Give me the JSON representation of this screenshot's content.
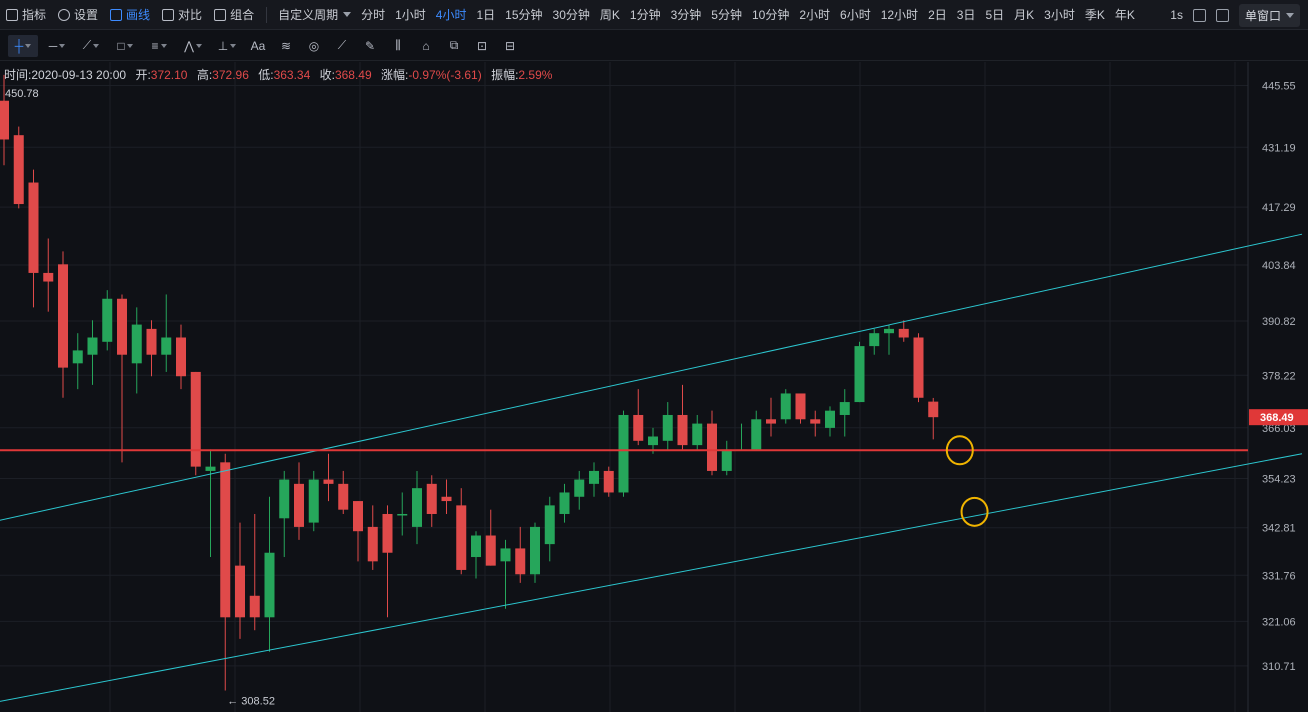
{
  "toolbar": {
    "indicators_label": "指标",
    "settings_label": "设置",
    "draw_label": "画线",
    "compare_label": "对比",
    "combine_label": "组合",
    "custom_period_label": "自定义周期",
    "periods": [
      "分时",
      "1小时",
      "4小时",
      "1日",
      "15分钟",
      "30分钟",
      "周K",
      "1分钟",
      "3分钟",
      "5分钟",
      "10分钟",
      "2小时",
      "6小时",
      "12小时",
      "2日",
      "3日",
      "5日",
      "月K",
      "3小时",
      "季K",
      "年K"
    ],
    "active_period": "4小时",
    "interval_label": "1s",
    "window_label": "单窗口"
  },
  "drawing_tools": [
    "crosshair-icon",
    "horizontal-line-icon",
    "trend-line-icon",
    "rectangle-icon",
    "parallel-lines-icon",
    "pattern-icon",
    "measure-icon",
    "text-icon",
    "fib-icon",
    "brush-icon",
    "ruler-icon",
    "pencil-icon",
    "candle-icon",
    "lock-icon",
    "copy-icon",
    "screenshot-icon",
    "trash-icon"
  ],
  "text_tool_label": "Aa",
  "info": {
    "time_label": "时间:",
    "time": "2020-09-13 20:00",
    "open_label": "开:",
    "open": "372.10",
    "high_label": "高:",
    "high": "372.96",
    "low_label": "低:",
    "low": "363.34",
    "close_label": "收:",
    "close": "368.49",
    "change_label": "涨幅:",
    "change": "-0.97%(-3.61)",
    "amp_label": "振幅:",
    "amp": "2.59%"
  },
  "chart_data": {
    "type": "candlestick",
    "y_axis": {
      "ticks": [
        445.55,
        431.19,
        417.29,
        403.84,
        390.82,
        378.22,
        366.03,
        354.23,
        342.81,
        331.76,
        321.06,
        310.71
      ],
      "range": [
        300,
        451
      ]
    },
    "visible_high_label": "450.78",
    "low_marker_label": "← 308.52",
    "current_price": "368.49",
    "colors": {
      "up": "#26a65b",
      "down": "#e04a4a",
      "channel": "#2cc7d0",
      "support": "#e03838",
      "circle": "#f0b400",
      "grid": "#1c1f26"
    },
    "candles": [
      {
        "o": 442,
        "h": 448,
        "l": 427,
        "c": 433
      },
      {
        "o": 434,
        "h": 436,
        "l": 417,
        "c": 418
      },
      {
        "o": 423,
        "h": 426,
        "l": 394,
        "c": 402
      },
      {
        "o": 402,
        "h": 410,
        "l": 393,
        "c": 400
      },
      {
        "o": 404,
        "h": 407,
        "l": 373,
        "c": 380
      },
      {
        "o": 381,
        "h": 388,
        "l": 375,
        "c": 384
      },
      {
        "o": 383,
        "h": 391,
        "l": 376,
        "c": 387
      },
      {
        "o": 386,
        "h": 398,
        "l": 384,
        "c": 396
      },
      {
        "o": 396,
        "h": 397,
        "l": 358,
        "c": 383
      },
      {
        "o": 381,
        "h": 394,
        "l": 374,
        "c": 390
      },
      {
        "o": 389,
        "h": 391,
        "l": 378,
        "c": 383
      },
      {
        "o": 383,
        "h": 397,
        "l": 379,
        "c": 387
      },
      {
        "o": 387,
        "h": 390,
        "l": 375,
        "c": 378
      },
      {
        "o": 379,
        "h": 379,
        "l": 355,
        "c": 357
      },
      {
        "o": 356,
        "h": 361,
        "l": 336,
        "c": 357
      },
      {
        "o": 358,
        "h": 360,
        "l": 305,
        "c": 322
      },
      {
        "o": 334,
        "h": 344,
        "l": 317,
        "c": 322
      },
      {
        "o": 327,
        "h": 346,
        "l": 319,
        "c": 322
      },
      {
        "o": 322,
        "h": 350,
        "l": 314,
        "c": 337
      },
      {
        "o": 345,
        "h": 356,
        "l": 336,
        "c": 354
      },
      {
        "o": 353,
        "h": 358,
        "l": 340,
        "c": 343
      },
      {
        "o": 344,
        "h": 356,
        "l": 342,
        "c": 354
      },
      {
        "o": 354,
        "h": 360,
        "l": 349,
        "c": 353
      },
      {
        "o": 353,
        "h": 356,
        "l": 346,
        "c": 347
      },
      {
        "o": 349,
        "h": 349,
        "l": 335,
        "c": 342
      },
      {
        "o": 343,
        "h": 348,
        "l": 333,
        "c": 335
      },
      {
        "o": 346,
        "h": 348,
        "l": 322,
        "c": 337
      },
      {
        "o": 346,
        "h": 351,
        "l": 341,
        "c": 346
      },
      {
        "o": 343,
        "h": 356,
        "l": 339,
        "c": 352
      },
      {
        "o": 353,
        "h": 355,
        "l": 343,
        "c": 346
      },
      {
        "o": 350,
        "h": 354,
        "l": 346,
        "c": 349
      },
      {
        "o": 348,
        "h": 352,
        "l": 332,
        "c": 333
      },
      {
        "o": 336,
        "h": 342,
        "l": 331,
        "c": 341
      },
      {
        "o": 341,
        "h": 347,
        "l": 334,
        "c": 334
      },
      {
        "o": 335,
        "h": 340,
        "l": 324,
        "c": 338
      },
      {
        "o": 338,
        "h": 343,
        "l": 330,
        "c": 332
      },
      {
        "o": 332,
        "h": 344,
        "l": 330,
        "c": 343
      },
      {
        "o": 339,
        "h": 350,
        "l": 335,
        "c": 348
      },
      {
        "o": 346,
        "h": 353,
        "l": 344,
        "c": 351
      },
      {
        "o": 350,
        "h": 356,
        "l": 347,
        "c": 354
      },
      {
        "o": 353,
        "h": 358,
        "l": 350,
        "c": 356
      },
      {
        "o": 356,
        "h": 357,
        "l": 350,
        "c": 351
      },
      {
        "o": 351,
        "h": 370,
        "l": 350,
        "c": 369
      },
      {
        "o": 369,
        "h": 375,
        "l": 362,
        "c": 363
      },
      {
        "o": 362,
        "h": 366,
        "l": 360,
        "c": 364
      },
      {
        "o": 363,
        "h": 372,
        "l": 361,
        "c": 369
      },
      {
        "o": 369,
        "h": 376,
        "l": 361,
        "c": 362
      },
      {
        "o": 362,
        "h": 369,
        "l": 361,
        "c": 367
      },
      {
        "o": 367,
        "h": 370,
        "l": 355,
        "c": 356
      },
      {
        "o": 356,
        "h": 363,
        "l": 355,
        "c": 361
      },
      {
        "o": 361,
        "h": 367,
        "l": 361,
        "c": 361
      },
      {
        "o": 361,
        "h": 370,
        "l": 361,
        "c": 368
      },
      {
        "o": 368,
        "h": 373,
        "l": 364,
        "c": 367
      },
      {
        "o": 368,
        "h": 375,
        "l": 367,
        "c": 374
      },
      {
        "o": 374,
        "h": 374,
        "l": 367,
        "c": 368
      },
      {
        "o": 368,
        "h": 370,
        "l": 364,
        "c": 367
      },
      {
        "o": 366,
        "h": 371,
        "l": 364,
        "c": 370
      },
      {
        "o": 369,
        "h": 375,
        "l": 364,
        "c": 372
      },
      {
        "o": 372,
        "h": 386,
        "l": 372,
        "c": 385
      },
      {
        "o": 385,
        "h": 389,
        "l": 383,
        "c": 388
      },
      {
        "o": 388,
        "h": 390,
        "l": 383,
        "c": 389
      },
      {
        "o": 389,
        "h": 391,
        "l": 386,
        "c": 387
      },
      {
        "o": 387,
        "h": 388,
        "l": 372,
        "c": 373
      },
      {
        "o": 372.1,
        "h": 372.96,
        "l": 363.34,
        "c": 368.49
      }
    ],
    "channel_upper": [
      [
        -1,
        344
      ],
      [
        88,
        411
      ]
    ],
    "channel_lower": [
      [
        -1,
        302
      ],
      [
        88,
        360
      ]
    ],
    "support_level": 360.8,
    "circles": [
      {
        "index": 64.8,
        "price": 360.8
      },
      {
        "index": 65.8,
        "price": 346.5
      }
    ]
  }
}
